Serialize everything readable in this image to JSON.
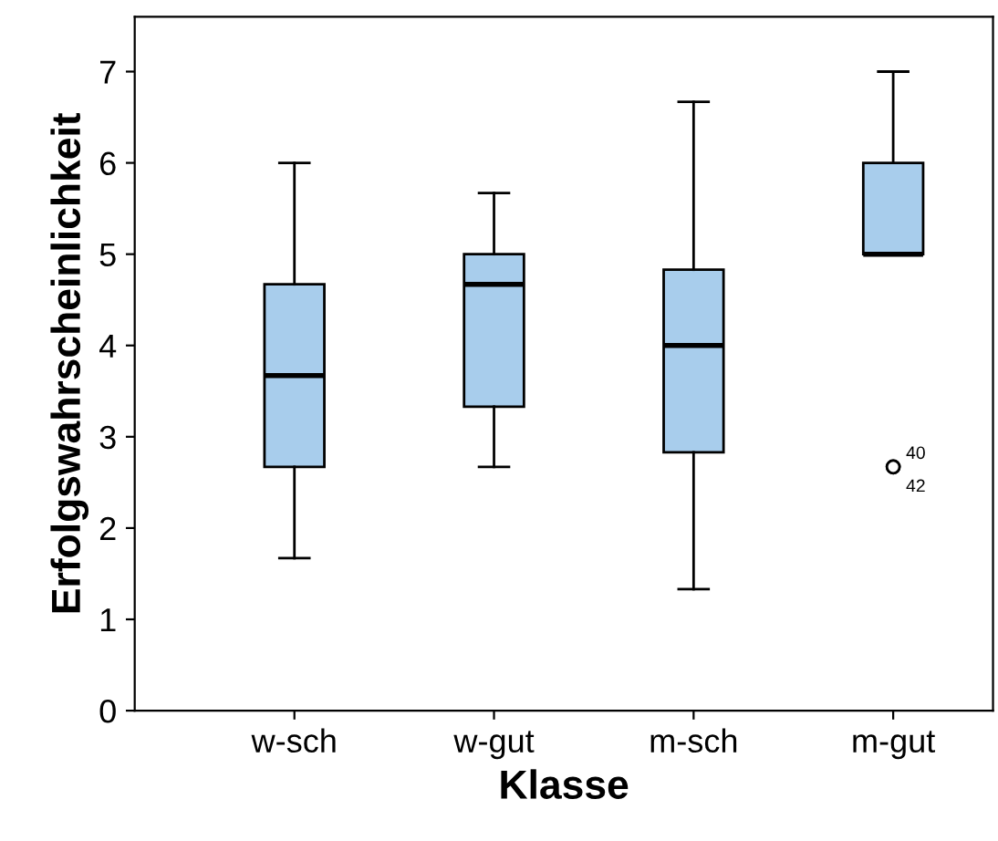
{
  "chart_data": {
    "type": "box",
    "xlabel": "Klasse",
    "ylabel": "Erfolgswahrscheinlichkeit",
    "categories": [
      "w-sch",
      "w-gut",
      "m-sch",
      "m-gut"
    ],
    "boxes": [
      {
        "low": 1.67,
        "q1": 2.67,
        "median": 3.67,
        "q3": 4.67,
        "high": 6
      },
      {
        "low": 2.67,
        "q1": 3.33,
        "median": 4.67,
        "q3": 5,
        "high": 5.67
      },
      {
        "low": 1.33,
        "q1": 2.83,
        "median": 4,
        "q3": 4.83,
        "high": 6.67
      },
      {
        "low": 5,
        "q1": 5,
        "median": 5,
        "q3": 6,
        "high": 7,
        "outliers": [
          2.67,
          2.67
        ]
      }
    ],
    "color": "#a8cdec",
    "annotations": [
      "40",
      "42"
    ],
    "ylim": [
      0,
      7.6
    ],
    "yticks": [
      0,
      1,
      2,
      3,
      4,
      5,
      6,
      7
    ],
    "grid": false,
    "legend": false
  }
}
